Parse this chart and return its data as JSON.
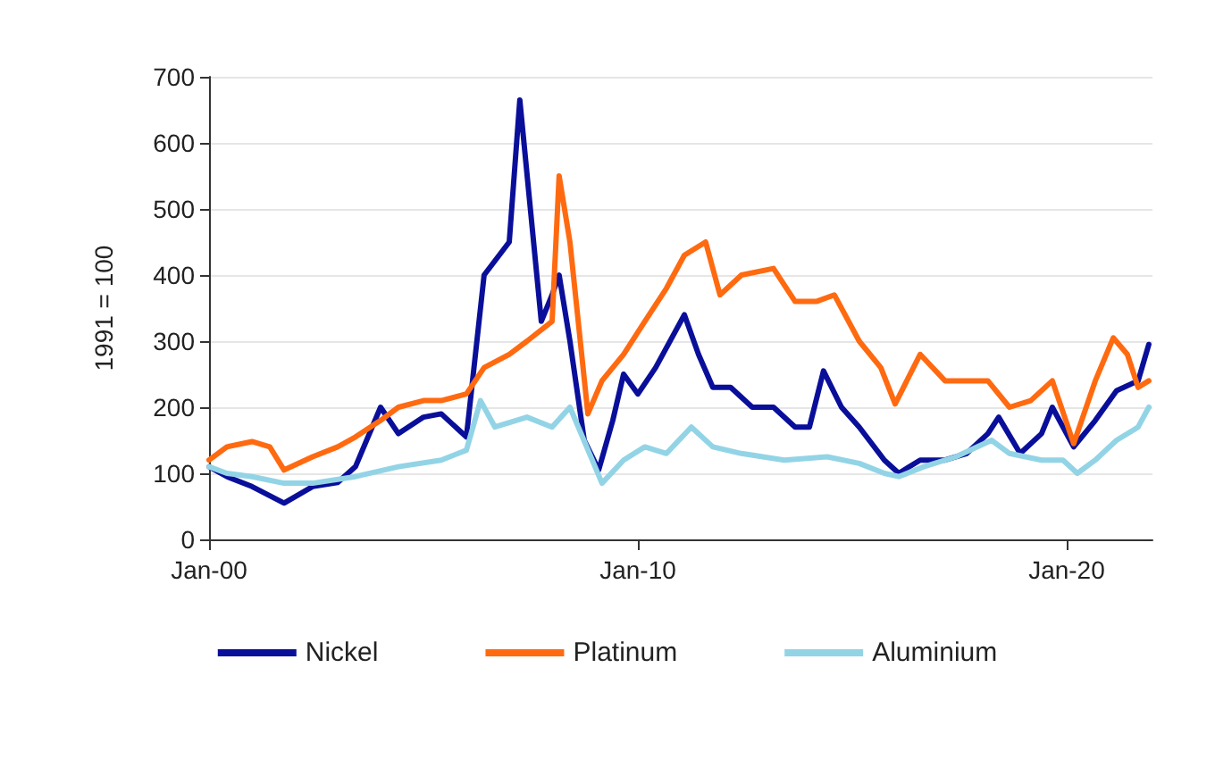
{
  "chart_data": {
    "type": "line",
    "ylabel": "1991 = 100",
    "xlim": [
      "2000-01",
      "2022-01"
    ],
    "xticks": [
      {
        "value": "2000-01",
        "label": "Jan-00"
      },
      {
        "value": "2010-01",
        "label": "Jan-10"
      },
      {
        "value": "2020-01",
        "label": "Jan-20"
      }
    ],
    "ylim": [
      0,
      700
    ],
    "yticks": [
      0,
      100,
      200,
      300,
      400,
      500,
      600,
      700
    ],
    "grid": "y",
    "legend": "bottom",
    "marker": "none",
    "line_style": "solid",
    "series": [
      {
        "name": "Nickel",
        "color": "#0a0f9a",
        "x": [
          "2000-01",
          "2000-06",
          "2001-01",
          "2001-10",
          "2002-06",
          "2003-01",
          "2003-06",
          "2004-01",
          "2004-06",
          "2005-01",
          "2005-06",
          "2006-01",
          "2006-06",
          "2007-01",
          "2007-04",
          "2007-10",
          "2008-01",
          "2008-03",
          "2008-06",
          "2008-10",
          "2009-02",
          "2009-06",
          "2009-09",
          "2010-01",
          "2010-06",
          "2011-02",
          "2011-06",
          "2011-10",
          "2012-03",
          "2012-09",
          "2013-03",
          "2013-09",
          "2014-01",
          "2014-05",
          "2014-10",
          "2015-03",
          "2015-10",
          "2016-02",
          "2016-08",
          "2017-03",
          "2017-09",
          "2018-03",
          "2018-06",
          "2018-12",
          "2019-06",
          "2019-09",
          "2020-03",
          "2020-09",
          "2021-03",
          "2021-09",
          "2021-12"
        ],
        "values": [
          110,
          95,
          80,
          55,
          80,
          86,
          110,
          200,
          160,
          185,
          190,
          155,
          400,
          450,
          665,
          330,
          370,
          400,
          300,
          150,
          105,
          180,
          250,
          220,
          260,
          340,
          280,
          230,
          230,
          200,
          200,
          170,
          170,
          255,
          200,
          170,
          120,
          100,
          120,
          120,
          130,
          160,
          185,
          130,
          160,
          200,
          140,
          180,
          225,
          240,
          295
        ]
      },
      {
        "name": "Platinum",
        "color": "#ff6a10",
        "x": [
          "2000-01",
          "2000-06",
          "2001-01",
          "2001-06",
          "2001-10",
          "2002-06",
          "2003-01",
          "2003-06",
          "2004-01",
          "2004-06",
          "2005-01",
          "2005-06",
          "2006-01",
          "2006-06",
          "2007-01",
          "2007-06",
          "2008-01",
          "2008-03",
          "2008-06",
          "2008-11",
          "2009-03",
          "2009-09",
          "2010-03",
          "2010-09",
          "2011-02",
          "2011-08",
          "2011-12",
          "2012-06",
          "2013-03",
          "2013-09",
          "2014-03",
          "2014-08",
          "2015-03",
          "2015-09",
          "2016-01",
          "2016-08",
          "2017-03",
          "2017-09",
          "2018-03",
          "2018-09",
          "2019-03",
          "2019-09",
          "2020-03",
          "2020-09",
          "2021-02",
          "2021-06",
          "2021-09",
          "2021-12"
        ],
        "values": [
          120,
          140,
          148,
          140,
          105,
          125,
          140,
          155,
          180,
          200,
          210,
          210,
          220,
          260,
          280,
          300,
          330,
          550,
          450,
          190,
          240,
          280,
          330,
          380,
          430,
          450,
          370,
          400,
          410,
          360,
          360,
          370,
          300,
          260,
          205,
          280,
          240,
          240,
          240,
          200,
          210,
          240,
          145,
          240,
          305,
          280,
          230,
          240
        ]
      },
      {
        "name": "Aluminium",
        "color": "#92d4e6",
        "x": [
          "2000-01",
          "2000-06",
          "2001-01",
          "2001-10",
          "2002-06",
          "2003-06",
          "2004-06",
          "2005-06",
          "2006-01",
          "2006-05",
          "2006-09",
          "2007-06",
          "2008-01",
          "2008-06",
          "2009-01",
          "2009-03",
          "2009-09",
          "2010-03",
          "2010-09",
          "2011-04",
          "2011-10",
          "2012-06",
          "2013-06",
          "2014-06",
          "2015-03",
          "2015-10",
          "2016-02",
          "2016-09",
          "2017-06",
          "2018-04",
          "2018-09",
          "2019-06",
          "2019-12",
          "2020-04",
          "2020-09",
          "2021-03",
          "2021-09",
          "2021-12"
        ],
        "values": [
          110,
          100,
          95,
          85,
          85,
          95,
          110,
          120,
          135,
          210,
          170,
          185,
          170,
          200,
          110,
          85,
          120,
          140,
          130,
          170,
          140,
          130,
          120,
          125,
          115,
          100,
          95,
          110,
          125,
          150,
          130,
          120,
          120,
          100,
          120,
          150,
          170,
          200
        ]
      }
    ]
  }
}
